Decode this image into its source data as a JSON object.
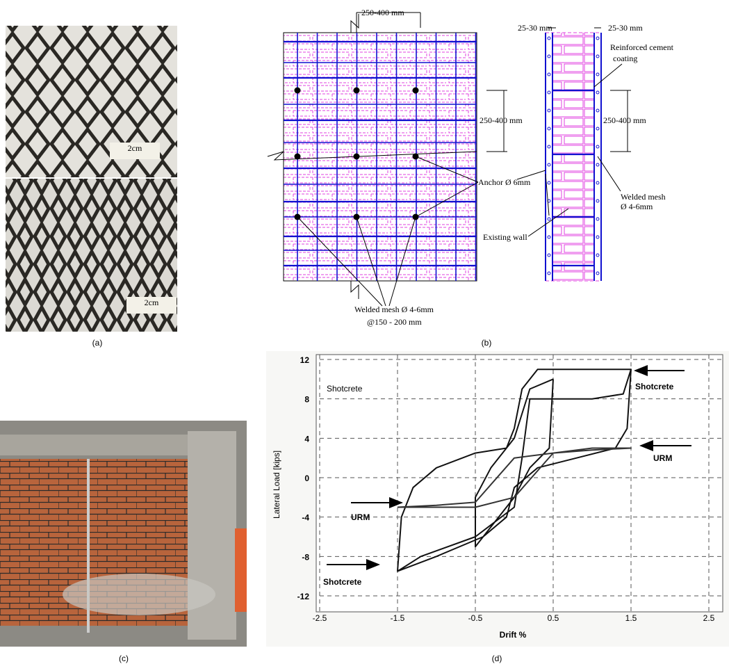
{
  "panels": {
    "labels": [
      "(a)",
      "(b)",
      "(c)",
      "(d)"
    ]
  },
  "photo_a": {
    "scale_label": "2cm"
  },
  "diagram": {
    "labels": [
      "250-400 mm",
      "25-30 mm",
      "25-30 mm",
      "Reinforced cement",
      "coating",
      "250-400 mm",
      "250-400 mm",
      "Anchor Ø 6mm",
      "Welded mesh",
      "Ø 4-6mm",
      "Existing wall",
      "Welded mesh Ø 4-6mm",
      "@150 - 200 mm"
    ]
  },
  "chart_data": {
    "type": "line",
    "title": "Shotcrete",
    "xlabel": "Drift %",
    "ylabel": "Lateral Load [kips]",
    "xlim": [
      -2.5,
      2.5
    ],
    "ylim": [
      -12,
      12
    ],
    "xticks": [
      -2.5,
      -1.5,
      -0.5,
      0.5,
      1.5,
      2.5
    ],
    "yticks": [
      -12,
      -8,
      -4,
      0,
      4,
      8,
      12
    ],
    "grid": true,
    "series": [
      {
        "name": "Shotcrete",
        "color": "#111111",
        "x": [
          -1.5,
          -1.2,
          -0.5,
          0,
          0.1,
          0.2,
          0.5,
          1.0,
          1.4,
          1.5,
          1.45,
          1.3,
          0.8,
          0.3,
          0,
          -0.1,
          -0.4,
          -1.0,
          -1.5,
          -1.45,
          -1.3,
          -1.0,
          -0.5,
          -0.1,
          0,
          0.1,
          0.3,
          0.7,
          1.0,
          1.3,
          1.5,
          null,
          0.5,
          0.45,
          0.2,
          0,
          -0.5,
          -0.5,
          -0.3,
          0,
          0.2,
          0.5
        ],
        "values": [
          -9.5,
          -8,
          -6,
          -3,
          2,
          8,
          8,
          8,
          8.5,
          11,
          5,
          3,
          2,
          1,
          -1,
          -4,
          -6,
          -8,
          -9.5,
          -4,
          -1,
          1,
          2.5,
          3,
          5,
          9,
          11,
          11,
          11,
          11,
          11,
          null,
          10,
          3,
          1,
          -2,
          -7,
          -2,
          1,
          4,
          9,
          10
        ]
      },
      {
        "name": "URM",
        "color": "#333333",
        "x": [
          -1.5,
          -1,
          -0.5,
          0,
          0.5,
          1,
          1.5,
          1,
          0.5,
          0,
          -0.5,
          -1,
          -1.5
        ],
        "values": [
          -3,
          -3,
          -3,
          -2,
          2.5,
          3,
          3,
          2.8,
          2.5,
          2,
          -2.5,
          -2.8,
          -3
        ]
      }
    ]
  }
}
